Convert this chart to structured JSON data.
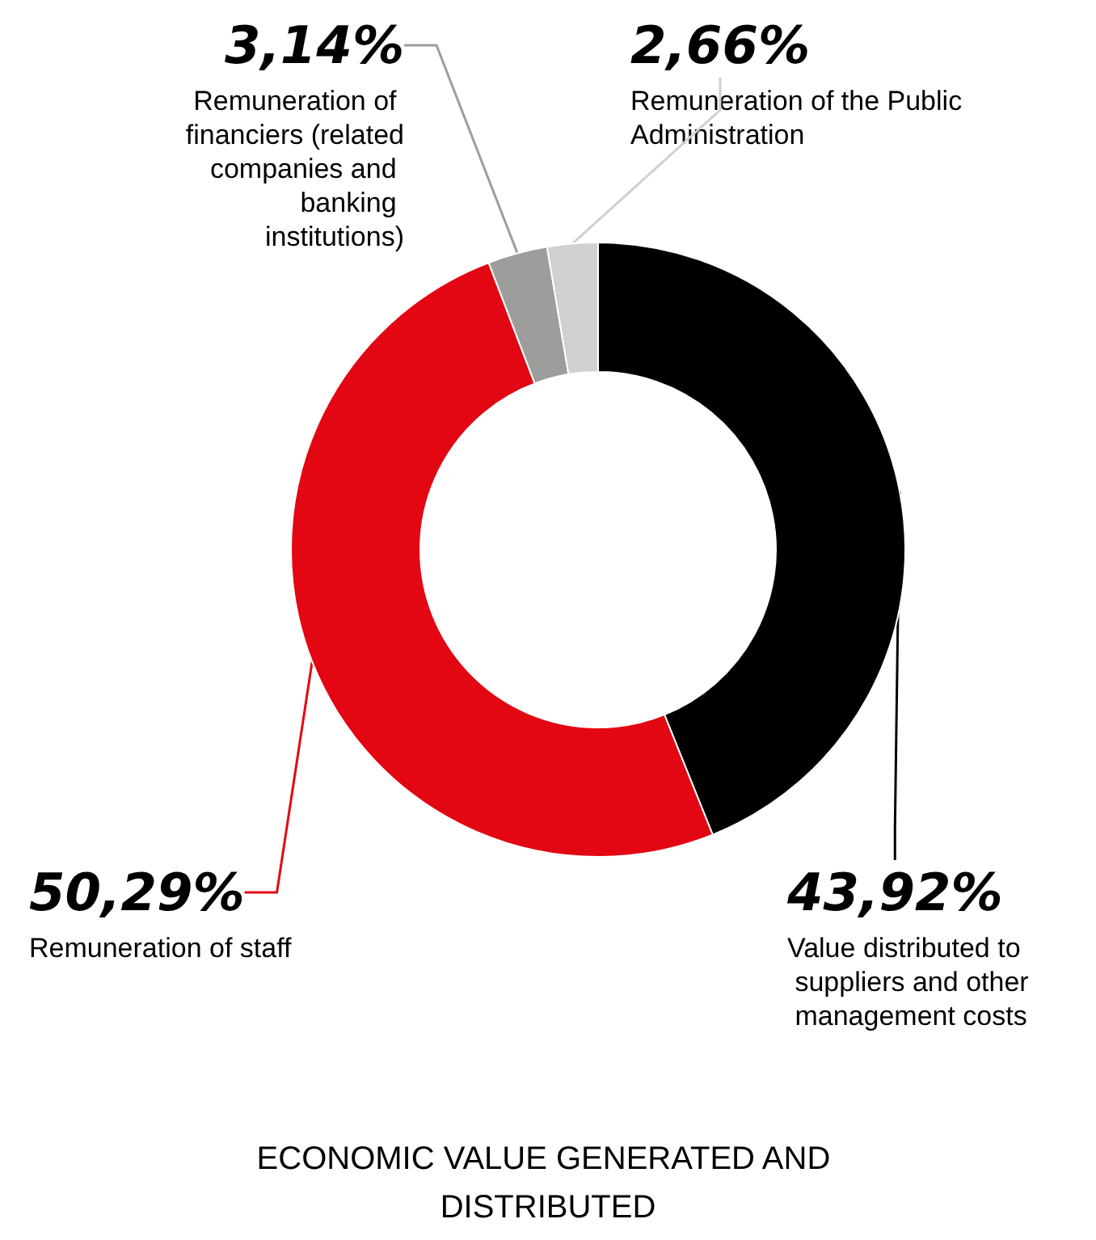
{
  "chart_data": {
    "type": "donut",
    "title": "ECONOMIC VALUE GENERATED AND DISTRIBUTED",
    "categories": [
      "Value distributed to suppliers and other management costs",
      "Remuneration of staff",
      "Remuneration of financiers (related companies and banking institutions)",
      "Remuneration of the Public Administration"
    ],
    "values": [
      43.92,
      50.29,
      3.14,
      2.66
    ],
    "value_labels": [
      "43,92%",
      "50,29%",
      "3,14%",
      "2,66%"
    ],
    "colors": [
      "#000000",
      "#e30613",
      "#9d9d9c",
      "#d0d0d0"
    ],
    "legend": false
  }
}
